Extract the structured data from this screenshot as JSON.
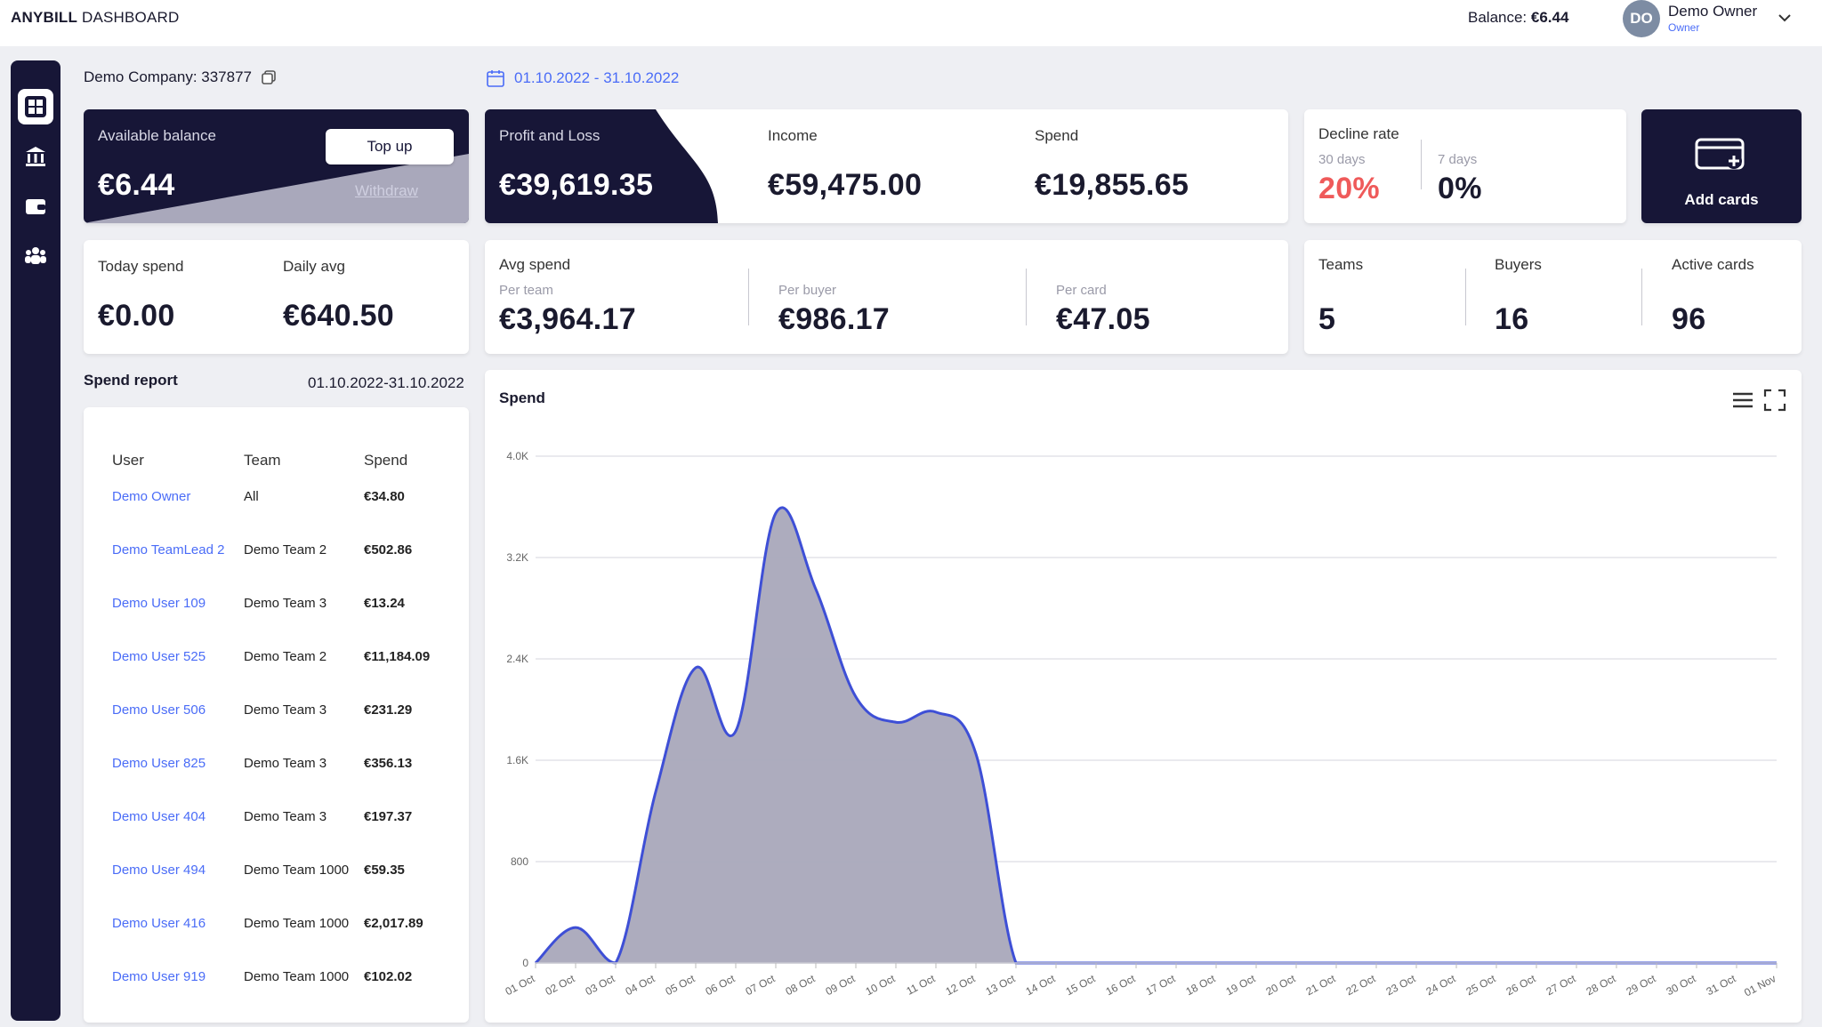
{
  "header": {
    "brand_bold": "ANYBILL",
    "brand_rest": " DASHBOARD",
    "balance_label": "Balance: ",
    "balance_value": "€6.44",
    "avatar_initials": "DO",
    "user_name": "Demo Owner",
    "user_role": "Owner"
  },
  "sidebar": {
    "items": [
      "dashboard-icon",
      "bank-icon",
      "wallet-icon",
      "team-icon"
    ]
  },
  "toolbar": {
    "company": "Demo Company: 337877",
    "date_range": "01.10.2022 - 31.10.2022"
  },
  "balance_card": {
    "label": "Available balance",
    "value": "€6.44",
    "topup_label": "Top up",
    "withdraw_label": "Withdraw"
  },
  "pnl_card": {
    "label": "Profit and Loss",
    "value": "€39,619.35",
    "income_label": "Income",
    "income_value": "€59,475.00",
    "spend_label": "Spend",
    "spend_value": "€19,855.65"
  },
  "decline_card": {
    "label": "Decline rate",
    "d30_label": "30 days",
    "d30_value": "20%",
    "d7_label": "7 days",
    "d7_value": "0%"
  },
  "add_cards": {
    "label": "Add cards"
  },
  "today_card": {
    "today_label": "Today spend",
    "today_value": "€0.00",
    "avg_label": "Daily avg",
    "avg_value": "€640.50"
  },
  "avg_spend_card": {
    "label": "Avg spend",
    "team_label": "Per team",
    "team_value": "€3,964.17",
    "buyer_label": "Per buyer",
    "buyer_value": "€986.17",
    "card_label": "Per card",
    "card_value": "€47.05"
  },
  "counts_card": {
    "teams_label": "Teams",
    "teams_value": "5",
    "buyers_label": "Buyers",
    "buyers_value": "16",
    "cards_label": "Active cards",
    "cards_value": "96"
  },
  "spend_report": {
    "title": "Spend report",
    "range": "01.10.2022-31.10.2022",
    "columns": [
      "User",
      "Team",
      "Spend"
    ],
    "rows": [
      {
        "user": "Demo Owner",
        "team": "All",
        "spend": "€34.80"
      },
      {
        "user": "Demo TeamLead 2",
        "team": "Demo Team 2",
        "spend": "€502.86"
      },
      {
        "user": "Demo User 109",
        "team": "Demo Team 3",
        "spend": "€13.24"
      },
      {
        "user": "Demo User 525",
        "team": "Demo Team 2",
        "spend": "€11,184.09"
      },
      {
        "user": "Demo User 506",
        "team": "Demo Team 3",
        "spend": "€231.29"
      },
      {
        "user": "Demo User 825",
        "team": "Demo Team 3",
        "spend": "€356.13"
      },
      {
        "user": "Demo User 404",
        "team": "Demo Team 3",
        "spend": "€197.37"
      },
      {
        "user": "Demo User 494",
        "team": "Demo Team 1000",
        "spend": "€59.35"
      },
      {
        "user": "Demo User 416",
        "team": "Demo Team 1000",
        "spend": "€2,017.89"
      },
      {
        "user": "Demo User 919",
        "team": "Demo Team 1000",
        "spend": "€102.02"
      }
    ]
  },
  "colors": {
    "navy": "#171637",
    "accent": "#4a6cf7",
    "decline": "#ef5a5a",
    "area_fill": "#a9a8bb",
    "line": "#3e4fd6"
  },
  "chart_data": {
    "type": "area",
    "title": "Spend",
    "x": [
      "01 Oct",
      "02 Oct",
      "03 Oct",
      "04 Oct",
      "05 Oct",
      "06 Oct",
      "07 Oct",
      "08 Oct",
      "09 Oct",
      "10 Oct",
      "11 Oct",
      "12 Oct",
      "13 Oct",
      "14 Oct",
      "15 Oct",
      "16 Oct",
      "17 Oct",
      "18 Oct",
      "19 Oct",
      "20 Oct",
      "21 Oct",
      "22 Oct",
      "23 Oct",
      "24 Oct",
      "25 Oct",
      "26 Oct",
      "27 Oct",
      "28 Oct",
      "29 Oct",
      "30 Oct",
      "31 Oct",
      "01 Nov"
    ],
    "values": [
      0,
      280,
      0,
      1350,
      2330,
      1830,
      3550,
      2950,
      2100,
      1900,
      1980,
      1650,
      0,
      0,
      0,
      0,
      0,
      0,
      0,
      0,
      0,
      0,
      0,
      0,
      0,
      0,
      0,
      0,
      0,
      0,
      0,
      0
    ],
    "y_ticks": [
      "0",
      "800",
      "1.6K",
      "2.4K",
      "3.2K",
      "4.0K"
    ],
    "ylim": [
      0,
      4000
    ],
    "grid": true,
    "legend": "none"
  }
}
